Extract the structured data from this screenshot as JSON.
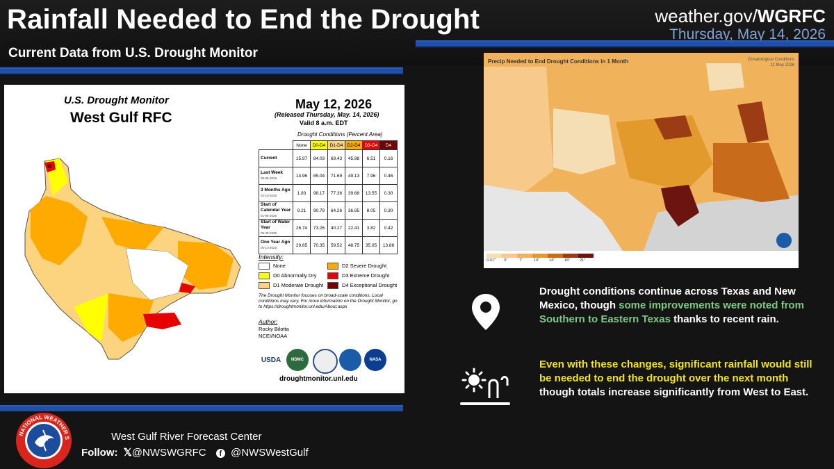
{
  "header": {
    "title": "Rainfall Needed to End the Drought",
    "subtitle": "Current Data from U.S. Drought Monitor",
    "site_prefix": "weather.gov/",
    "site_office": "WGRFC",
    "date": "Thursday, May 14, 2026"
  },
  "drought_monitor": {
    "title": "U.S. Drought Monitor",
    "region": "West Gulf RFC",
    "map_date": "May 12, 2026",
    "released": "(Released Thursday, May. 14, 2026)",
    "valid": "Valid 8 a.m. EDT",
    "table_caption": "Drought Conditions (Percent Area)",
    "table_headers": [
      "None",
      "D0-D4",
      "D1-D4",
      "D2-D4",
      "D3-D4",
      "D4"
    ],
    "header_colors": [
      "#ffffff",
      "#ffff00",
      "#fcd37f",
      "#ffaa00",
      "#e60000",
      "#730000"
    ],
    "rows": [
      {
        "label": "Current",
        "sub": "",
        "values": [
          "15.97",
          "84.03",
          "69.43",
          "45.98",
          "6.51",
          "0.16"
        ]
      },
      {
        "label": "Last Week",
        "sub": "05-05-2026",
        "values": [
          "14.96",
          "85.04",
          "71.69",
          "49.13",
          "7.96",
          "0.46"
        ]
      },
      {
        "label": "3 Months Ago",
        "sub": "02-10-2026",
        "values": [
          "1.83",
          "98.17",
          "77.36",
          "39.68",
          "13.55",
          "0.30"
        ]
      },
      {
        "label": "Start of Calendar Year",
        "sub": "01-06-2026",
        "values": [
          "9.21",
          "90.79",
          "64.26",
          "36.95",
          "8.05",
          "0.30"
        ]
      },
      {
        "label": "Start of Water Year",
        "sub": "09-30-2025",
        "values": [
          "26.74",
          "73.26",
          "40.27",
          "22.41",
          "3.82",
          "0.42"
        ]
      },
      {
        "label": "One Year Ago",
        "sub": "05-13-2025",
        "values": [
          "29.65",
          "70.35",
          "59.52",
          "48.75",
          "35.05",
          "13.88"
        ]
      }
    ],
    "intensity_title": "Intensity:",
    "legend": [
      {
        "label": "None",
        "color": "#ffffff"
      },
      {
        "label": "D0 Abnormally Dry",
        "color": "#ffff00"
      },
      {
        "label": "D1 Moderate Drought",
        "color": "#fcd37f"
      },
      {
        "label": "D2 Severe Drought",
        "color": "#ffaa00"
      },
      {
        "label": "D3 Extreme Drought",
        "color": "#e60000"
      },
      {
        "label": "D4 Exceptional Drought",
        "color": "#730000"
      }
    ],
    "note": "The Drought Monitor focuses on broad-scale conditions. Local conditions may vary. For more information on the Drought Monitor, go to https://droughtmonitor.unl.edu/About.aspx",
    "author_heading": "Author:",
    "author_name": "Rocky Bilotta",
    "author_org": "NCEI/NOAA",
    "logos": [
      "USDA",
      "NDMC",
      "",
      "",
      "NASA"
    ],
    "url": "droughtmonitor.unl.edu"
  },
  "precip_map": {
    "title": "Precip Needed to End Drought Conditions in 1 Month",
    "clim_label": "Climatological Conditions",
    "clim_date": "11 May 2026",
    "legend_labels": [
      "0.01\"",
      "3\"",
      "7\"",
      "10\"",
      "14\"",
      "18\"",
      "21\""
    ],
    "legend_colors": [
      "#f5deb3",
      "#f7c98a",
      "#f0b25a",
      "#e39a2c",
      "#c86c1b",
      "#9c3c14",
      "#6b1410"
    ]
  },
  "info": {
    "p1_a": "Drought conditions continue across Texas and New Mexico, though ",
    "p1_hl": "some improvements were noted from Southern to Eastern Texas",
    "p1_b": " thanks to recent rain.",
    "p2_hl": "Even with these changes, significant rainfall would still be needed to end the drought over the next month",
    "p2_b": " though totals increase significantly from West to East."
  },
  "footer": {
    "center_name": "West Gulf River Forecast Center",
    "follow_label": "Follow:",
    "x_handle": "@NWSWGRFC",
    "fb_handle": "@NWSWestGulf",
    "nws_logo_text": "NATIONAL WEATHER SERVICE"
  },
  "colors": {
    "accent_blue": "#1f4fa6",
    "date_blue": "#7fa4d6",
    "highlight_green": "#7fc982",
    "highlight_yellow": "#f2e418"
  }
}
